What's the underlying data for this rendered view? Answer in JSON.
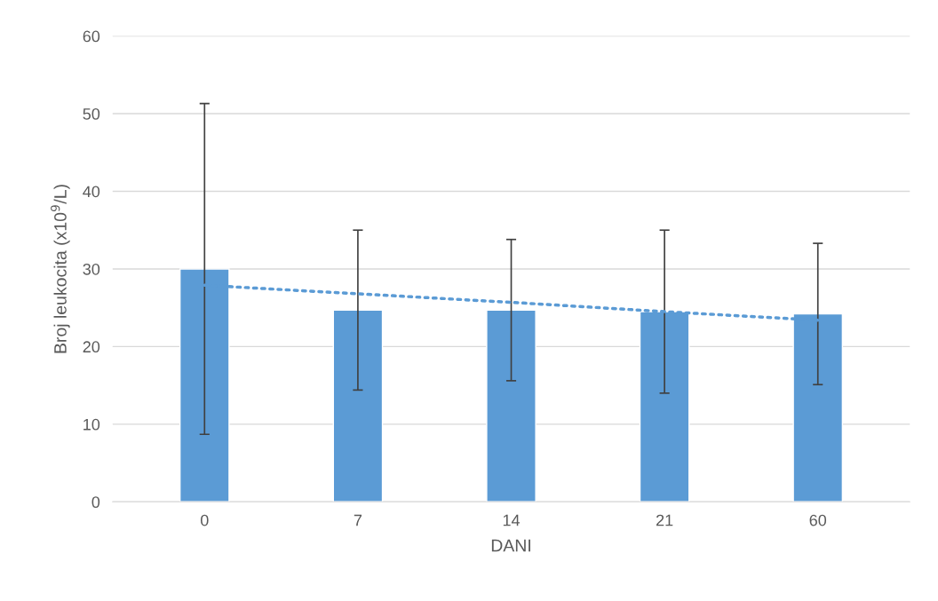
{
  "chart_data": {
    "type": "bar",
    "xlabel": "DANI",
    "ylabel": "Broj leukocita (x10$^{9}$/L)",
    "categories": [
      "0",
      "7",
      "14",
      "21",
      "60"
    ],
    "series": [
      {
        "color": "#5b9bd5",
        "values": [
          30,
          24.7,
          24.7,
          24.5,
          24.2
        ],
        "errors": [
          21.3,
          10.3,
          9.1,
          10.5,
          9.1
        ]
      },
      {
        "type": "line",
        "color": "#5b9bd5",
        "line_style": "dotted",
        "values": [
          27.9,
          26.8,
          25.7,
          24.5,
          23.4
        ]
      }
    ],
    "ylim": [
      0,
      60
    ],
    "yticks": [
      0,
      10,
      20,
      30,
      40,
      50,
      60
    ],
    "grid": "y"
  }
}
